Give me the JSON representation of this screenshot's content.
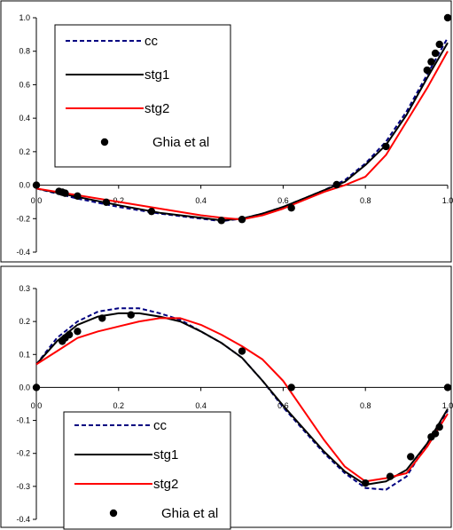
{
  "chart_data": [
    {
      "type": "line",
      "xlim": [
        0,
        1
      ],
      "ylim": [
        -0.4,
        1.0
      ],
      "x_ticks": [
        "0.0",
        "0.2",
        "0.4",
        "0.6",
        "0.8",
        "1.0"
      ],
      "y_ticks": [
        "1.0",
        "0.8",
        "0.6",
        "0.4",
        "0.2",
        "0.0",
        "-0.2",
        "-0.4"
      ],
      "legend_position": "top-left",
      "series": [
        {
          "name": "cc",
          "style": "dashed",
          "color": "#000080",
          "x": [
            0.0,
            0.1,
            0.2,
            0.3,
            0.4,
            0.45,
            0.5,
            0.55,
            0.6,
            0.65,
            0.7,
            0.75,
            0.8,
            0.85,
            0.9,
            0.95,
            1.0
          ],
          "y": [
            -0.02,
            -0.08,
            -0.13,
            -0.17,
            -0.2,
            -0.215,
            -0.2,
            -0.17,
            -0.13,
            -0.08,
            -0.03,
            0.03,
            0.13,
            0.26,
            0.44,
            0.66,
            0.88
          ]
        },
        {
          "name": "stg1",
          "style": "solid",
          "color": "#000000",
          "x": [
            0.0,
            0.1,
            0.2,
            0.3,
            0.4,
            0.45,
            0.5,
            0.55,
            0.6,
            0.65,
            0.7,
            0.75,
            0.8,
            0.85,
            0.9,
            0.95,
            1.0
          ],
          "y": [
            -0.02,
            -0.07,
            -0.12,
            -0.165,
            -0.195,
            -0.21,
            -0.2,
            -0.17,
            -0.13,
            -0.08,
            -0.03,
            0.02,
            0.12,
            0.24,
            0.42,
            0.64,
            0.85
          ]
        },
        {
          "name": "stg2",
          "style": "solid",
          "color": "#ff0000",
          "x": [
            0.0,
            0.1,
            0.2,
            0.3,
            0.4,
            0.45,
            0.5,
            0.55,
            0.6,
            0.65,
            0.7,
            0.75,
            0.8,
            0.85,
            0.9,
            0.95,
            1.0
          ],
          "y": [
            -0.02,
            -0.06,
            -0.1,
            -0.14,
            -0.18,
            -0.195,
            -0.205,
            -0.18,
            -0.14,
            -0.09,
            -0.04,
            0.0,
            0.05,
            0.18,
            0.38,
            0.58,
            0.8
          ]
        },
        {
          "name": "Ghia et al",
          "style": "markers",
          "color": "#000000",
          "x": [
            0.0,
            0.055,
            0.063,
            0.07,
            0.1,
            0.17,
            0.28,
            0.45,
            0.5,
            0.62,
            0.73,
            0.85,
            0.95,
            0.96,
            0.97,
            0.98,
            1.0
          ],
          "y": [
            0.0,
            -0.037,
            -0.042,
            -0.048,
            -0.065,
            -0.102,
            -0.157,
            -0.211,
            -0.205,
            -0.136,
            0.003,
            0.231,
            0.687,
            0.737,
            0.788,
            0.841,
            1.0
          ]
        }
      ]
    },
    {
      "type": "line",
      "xlim": [
        0,
        1
      ],
      "ylim": [
        -0.4,
        0.3
      ],
      "x_ticks": [
        "0.0",
        "0.2",
        "0.4",
        "0.6",
        "0.8",
        "1.0"
      ],
      "y_ticks": [
        "0.3",
        "0.2",
        "0.1",
        "0.0",
        "-0.1",
        "-0.2",
        "-0.3",
        "-0.4"
      ],
      "legend_position": "bottom-left",
      "series": [
        {
          "name": "cc",
          "style": "dashed",
          "color": "#000080",
          "x": [
            0.0,
            0.05,
            0.1,
            0.15,
            0.2,
            0.25,
            0.3,
            0.35,
            0.4,
            0.45,
            0.5,
            0.55,
            0.6,
            0.65,
            0.7,
            0.75,
            0.8,
            0.85,
            0.9,
            0.95,
            1.0
          ],
          "y": [
            0.07,
            0.15,
            0.2,
            0.23,
            0.24,
            0.24,
            0.225,
            0.205,
            0.17,
            0.135,
            0.09,
            0.02,
            -0.06,
            -0.13,
            -0.2,
            -0.26,
            -0.305,
            -0.31,
            -0.27,
            -0.17,
            -0.07
          ]
        },
        {
          "name": "stg1",
          "style": "solid",
          "color": "#000000",
          "x": [
            0.0,
            0.05,
            0.1,
            0.15,
            0.2,
            0.25,
            0.3,
            0.35,
            0.4,
            0.45,
            0.5,
            0.55,
            0.6,
            0.65,
            0.7,
            0.75,
            0.8,
            0.85,
            0.9,
            0.95,
            1.0
          ],
          "y": [
            0.07,
            0.14,
            0.19,
            0.215,
            0.225,
            0.225,
            0.215,
            0.2,
            0.17,
            0.135,
            0.09,
            0.02,
            -0.055,
            -0.125,
            -0.195,
            -0.255,
            -0.295,
            -0.285,
            -0.25,
            -0.17,
            -0.065
          ]
        },
        {
          "name": "stg2",
          "style": "solid",
          "color": "#ff0000",
          "x": [
            0.0,
            0.05,
            0.1,
            0.15,
            0.2,
            0.25,
            0.3,
            0.35,
            0.4,
            0.45,
            0.5,
            0.55,
            0.6,
            0.65,
            0.7,
            0.75,
            0.8,
            0.85,
            0.9,
            0.95,
            1.0
          ],
          "y": [
            0.07,
            0.11,
            0.15,
            0.17,
            0.185,
            0.2,
            0.21,
            0.21,
            0.19,
            0.16,
            0.125,
            0.085,
            0.02,
            -0.07,
            -0.16,
            -0.24,
            -0.285,
            -0.275,
            -0.26,
            -0.18,
            -0.08
          ]
        },
        {
          "name": "Ghia et al",
          "style": "markers",
          "color": "#000000",
          "x": [
            0.0,
            0.063,
            0.07,
            0.08,
            0.1,
            0.16,
            0.23,
            0.5,
            0.62,
            0.8,
            0.86,
            0.91,
            0.96,
            0.97,
            0.98,
            1.0
          ],
          "y": [
            0.0,
            0.14,
            0.15,
            0.16,
            0.17,
            0.21,
            0.22,
            0.11,
            0.0,
            -0.29,
            -0.27,
            -0.21,
            -0.15,
            -0.14,
            -0.12,
            0.0
          ]
        }
      ]
    }
  ]
}
